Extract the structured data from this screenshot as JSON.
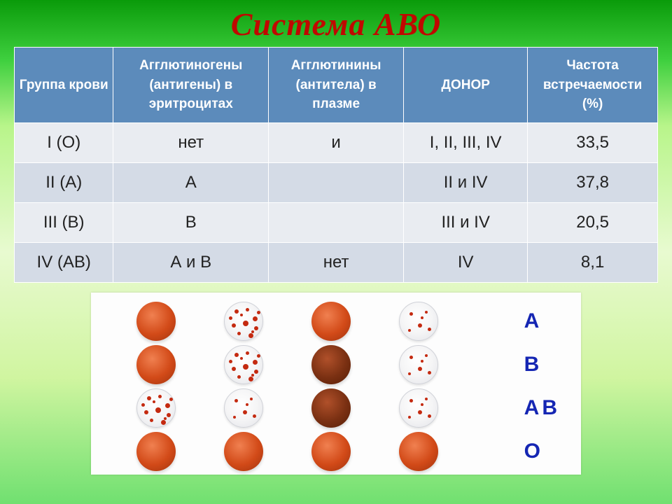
{
  "title": "Система АВО",
  "table": {
    "header_bg": "#5c8bbb",
    "header_color": "#ffffff",
    "row_odd_bg": "#e9ecf1",
    "row_even_bg": "#d4dbe6",
    "columns": [
      "Группа крови",
      "Агглютиногены (антигены) в эритроцитах",
      "Агглютинины (антитела) в плазме",
      "ДОНОР",
      "Частота встречаемости (%)"
    ],
    "rows": [
      {
        "group": "I (O)",
        "agglutinogen": "нет",
        "agglutinin": "и",
        "donor": "I,  II,  III,  IV",
        "freq": "33,5"
      },
      {
        "group": "II (A)",
        "agglutinogen": "A",
        "agglutinin": "",
        "donor": "II и IV",
        "freq": "37,8"
      },
      {
        "group": "III (B)",
        "agglutinogen": "B",
        "agglutinin": "",
        "donor": "III и  IV",
        "freq": "20,5"
      },
      {
        "group": "IV  (AB)",
        "agglutinogen": "А и В",
        "agglutinin": "нет",
        "donor": "IV",
        "freq": "8,1"
      }
    ]
  },
  "diagram": {
    "panel_bg": "#fdfdfd",
    "row_label_color": "#1526b3",
    "row_labels": [
      "A",
      "B",
      "AB",
      "O"
    ],
    "solid_red": "#d24a18",
    "solid_dark": "#7a3012",
    "agglut_border": "#d0d2d8",
    "speck_color": "#c42a10",
    "grid": [
      [
        "solid",
        "agglut",
        "solid",
        "agglut-few"
      ],
      [
        "solid",
        "agglut",
        "solid-dark",
        "agglut-few"
      ],
      [
        "agglut",
        "agglut-few",
        "solid-dark",
        "agglut-few"
      ],
      [
        "solid",
        "solid",
        "solid",
        "solid"
      ]
    ]
  }
}
